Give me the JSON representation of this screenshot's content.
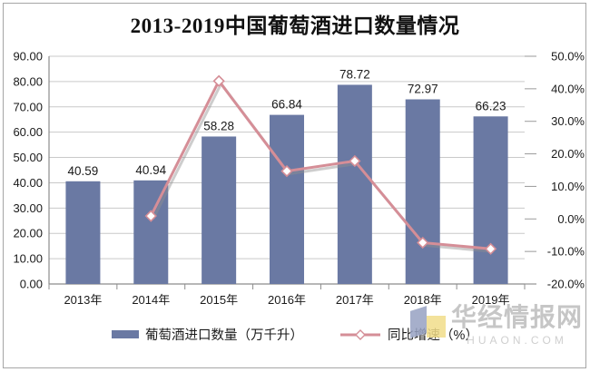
{
  "title": "2013-2019中国葡萄酒进口数量情况",
  "legend": {
    "items": [
      {
        "label": "葡萄酒进口数量（万千升）",
        "marker": "bar"
      },
      {
        "label": "同比增速（%）",
        "marker": "line-diamond"
      }
    ]
  },
  "watermark": {
    "name": "华经情报网",
    "domain": "HUAON.COM",
    "logo": "huaon-cube-logo"
  },
  "colors": {
    "bar": "#6A79A3",
    "line": "#D58E97",
    "line_shadow": "#909090",
    "marker_fill": "#FFFFFF",
    "gridline": "#C9C9C9",
    "axis": "#8C8C8C",
    "text": "#1A1A1A",
    "watermark_name": "#C6C6C6",
    "watermark_domain": "#CFCFCF",
    "logo_blue": "#97A2C2",
    "logo_yellow": "#F2DE8A"
  },
  "chart_data": {
    "type": "bar+line combo",
    "title": "2013-2019中国葡萄酒进口数量情况",
    "categories": [
      "2013年",
      "2014年",
      "2015年",
      "2016年",
      "2017年",
      "2018年",
      "2019年"
    ],
    "series": [
      {
        "name": "葡萄酒进口数量（万千升）",
        "type": "bar",
        "axis": "left",
        "values": [
          40.59,
          40.94,
          58.28,
          66.84,
          78.72,
          72.97,
          66.23
        ],
        "labels": [
          "40.59",
          "40.94",
          "58.28",
          "66.84",
          "78.72",
          "72.97",
          "66.23"
        ]
      },
      {
        "name": "同比增速（%）",
        "type": "line",
        "axis": "right",
        "values": [
          null,
          0.9,
          42.4,
          14.7,
          17.8,
          -7.3,
          -9.2
        ]
      }
    ],
    "left_axis": {
      "min": 0,
      "max": 90,
      "step": 10,
      "tick_labels": [
        "0.00",
        "10.00",
        "20.00",
        "30.00",
        "40.00",
        "50.00",
        "60.00",
        "70.00",
        "80.00",
        "90.00"
      ]
    },
    "right_axis": {
      "min": -20,
      "max": 50,
      "step": 10,
      "tick_labels": [
        "-20.0%",
        "-10.0%",
        "0.0%",
        "10.0%",
        "20.0%",
        "30.0%",
        "40.0%",
        "50.0%"
      ]
    },
    "grid": "horizontal",
    "legend_position": "bottom"
  }
}
